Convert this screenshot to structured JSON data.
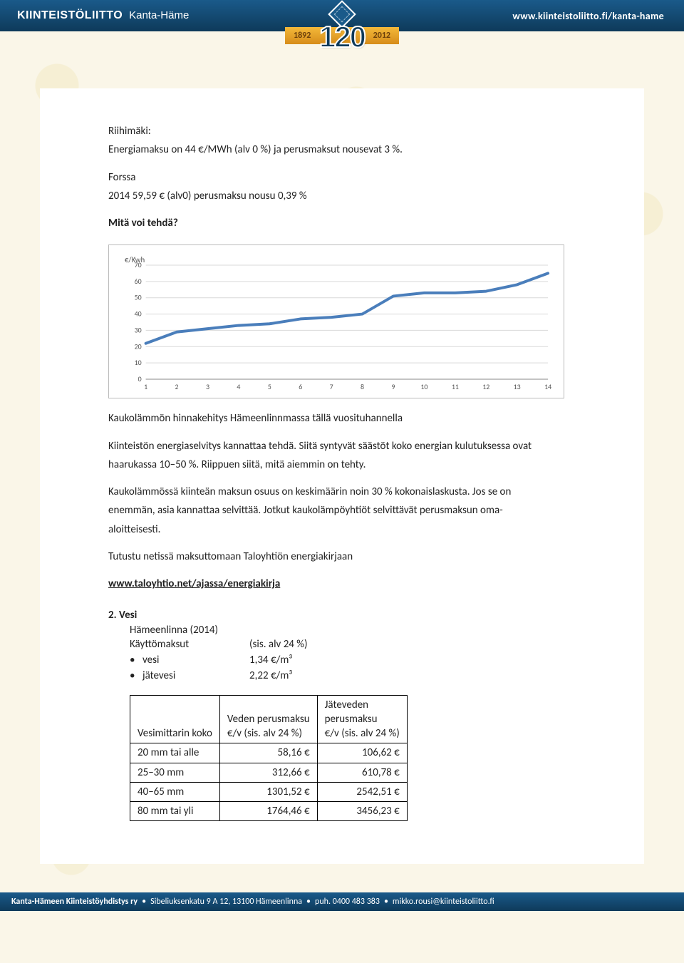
{
  "header": {
    "brand": "KIINTEISTÖLIITTO",
    "region": "Kanta-Häme",
    "url": "www.kiinteistoliitto.fi/kanta-hame"
  },
  "anniversary": {
    "year_from": "1892",
    "year_to": "2012",
    "number": "120"
  },
  "intro": {
    "city_label": "Riihimäki:",
    "line1": "Energiamaksu on 44 €/MWh (alv 0 %) ja perusmaksut nousevat 3 %.",
    "forssa_label": "Forssa",
    "forssa_line": "2014 59,59 € (alv0) perusmaksu nousu 0,39 %",
    "question": "Mitä voi tehdä?"
  },
  "chart": {
    "type": "line",
    "y_label": "€/Kwh",
    "x_values": [
      1,
      2,
      3,
      4,
      5,
      6,
      7,
      8,
      9,
      10,
      11,
      12,
      13,
      14
    ],
    "y_values": [
      22,
      29,
      31,
      33,
      34,
      37,
      38,
      40,
      51,
      53,
      53,
      54,
      58,
      65
    ],
    "ylim": [
      0,
      70
    ],
    "ytick_step": 10,
    "line_color": "#4a7ebb",
    "line_width": 4,
    "grid_color": "#d9d9d9",
    "axis_color": "#888888",
    "background_color": "#ffffff",
    "label_fontsize": 11,
    "tick_fontsize": 10,
    "tick_color": "#555555"
  },
  "body": {
    "caption": "Kaukolämmön hinnakehitys Hämeenlinnmassa tällä vuosituhannella",
    "p1a": "Kiinteistön energiaselvitys kannattaa tehdä. Siitä syntyvät säästöt koko energian kulutuksessa ovat",
    "p1b": "haarukassa 10–50 %. Riippuen siitä, mitä aiemmin on tehty.",
    "p2a": "Kaukolämmössä kiinteän maksun osuus on keskimäärin noin 30 % kokonaislaskusta. Jos se on",
    "p2b": "enemmän, asia kannattaa selvittää. Jotkut kaukolämpöyhtiöt selvittävät perusmaksun oma-",
    "p2c": "aloitteisesti.",
    "p3": "Tutustu netissä maksuttomaan Taloyhtiön energiakirjaan",
    "link": "www.taloyhtio.net/ajassa/energiakirja"
  },
  "section2": {
    "num": "2.",
    "title": "Vesi",
    "sub1": "Hämeenlinna (2014)",
    "row_label": "Käyttömaksut",
    "row_note": "(sis. alv 24 %)",
    "items": [
      {
        "label": "vesi",
        "value": "1,34 €/m³"
      },
      {
        "label": "jätevesi",
        "value": "2,22 €/m³"
      }
    ]
  },
  "table": {
    "col1": "Vesimittarin koko",
    "col2a": "Veden perusmaksu",
    "col2b": "€/v (sis. alv 24 %)",
    "col3a": "Jäteveden",
    "col3b": "perusmaksu",
    "col3c": "€/v (sis. alv 24 %)",
    "rows": [
      {
        "size": "20 mm tai alle",
        "water": "58,16 €",
        "waste": "106,62 €"
      },
      {
        "size": "25–30 mm",
        "water": "312,66 €",
        "waste": "610,78 €"
      },
      {
        "size": "40–65 mm",
        "water": "1301,52 €",
        "waste": "2542,51 €"
      },
      {
        "size": "80 mm tai yli",
        "water": "1764,46 €",
        "waste": "3456,23 €"
      }
    ]
  },
  "footer": {
    "org": "Kanta-Hämeen Kiinteistöyhdistys ry",
    "addr": "Sibeliuksenkatu 9 A 12, 13100 Hämeenlinna",
    "phone": "puh. 0400 483 383",
    "email": "mikko.rousi@kiinteistoliitto.fi"
  }
}
